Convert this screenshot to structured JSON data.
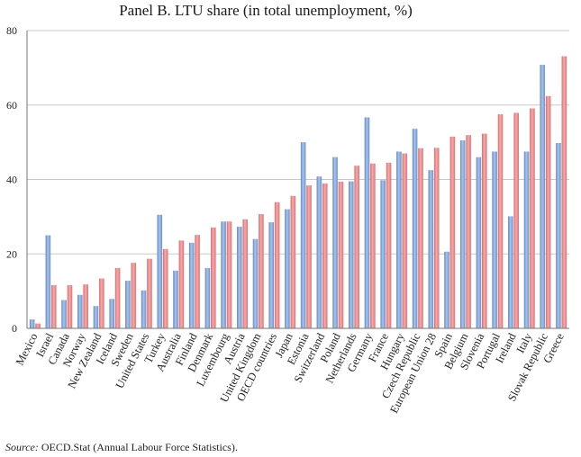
{
  "chart_data": {
    "type": "bar",
    "title": "Panel B. LTU share (in total unemployment, %)",
    "xlabel": "",
    "ylabel": "",
    "ylim": [
      0,
      80
    ],
    "yticks": [
      0,
      20,
      40,
      60,
      80
    ],
    "categories": [
      "Mexico",
      "Israel",
      "Canada",
      "Norway",
      "New Zealand",
      "Iceland",
      "Sweden",
      "United States",
      "Turkey",
      "Australia",
      "Finland",
      "Denmark",
      "Luxembourg",
      "Austria",
      "United Kingdom",
      "OECD countries",
      "Japan",
      "Estonia",
      "Switzerland",
      "Poland",
      "Netherlands",
      "Germany",
      "France",
      "Hungary",
      "Czech Republic",
      "European Union 28",
      "Spain",
      "Belgium",
      "Slovenia",
      "Portugal",
      "Ireland",
      "Italy",
      "Slovak Republic",
      "Greece"
    ],
    "series": [
      {
        "name": "Series 1 (blue)",
        "color": "#7fa6d8",
        "values": [
          2.4,
          25,
          7.6,
          9,
          6,
          7.9,
          12.8,
          10.2,
          30.5,
          15.5,
          23,
          16.2,
          28.7,
          27.3,
          24,
          28.5,
          32,
          50,
          40.8,
          46,
          39.5,
          56.7,
          39.8,
          47.5,
          53.6,
          42.5,
          20.6,
          50.5,
          46,
          47.5,
          30.1,
          47.5,
          70.8,
          49.8
        ]
      },
      {
        "name": "Series 2 (red)",
        "color": "#ee8b8b",
        "values": [
          1.3,
          11.6,
          11.6,
          11.8,
          13.4,
          16.2,
          17.6,
          18.7,
          21.3,
          23.6,
          25.1,
          27.1,
          28.7,
          29.3,
          30.7,
          33.9,
          35.6,
          38.4,
          38.9,
          39.4,
          43.7,
          44.3,
          44.5,
          47,
          48.4,
          48.5,
          51.5,
          51.9,
          52.3,
          57.5,
          57.9,
          59.1,
          62.4,
          73.1
        ]
      }
    ]
  },
  "source": {
    "label": "Source:",
    "text": " OECD.Stat (Annual Labour Force Statistics)."
  }
}
